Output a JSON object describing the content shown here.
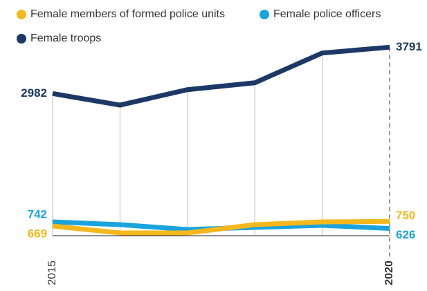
{
  "chart_data": {
    "type": "line",
    "categories": [
      "2015",
      null,
      null,
      null,
      null,
      "2020"
    ],
    "series": [
      {
        "name": "Female members of formed police units",
        "color": "#f5b81c",
        "values": [
          669,
          548,
          548,
          693,
          741,
          750
        ]
      },
      {
        "name": "Female police officers",
        "color": "#1aa3dc",
        "values": [
          742,
          693,
          608,
          645,
          681,
          626
        ]
      },
      {
        "name": "Female troops",
        "color": "#1c3966",
        "values": [
          2982,
          2780,
          3050,
          3170,
          3690,
          3791
        ]
      }
    ],
    "ylim": [
      500,
      4000
    ]
  }
}
